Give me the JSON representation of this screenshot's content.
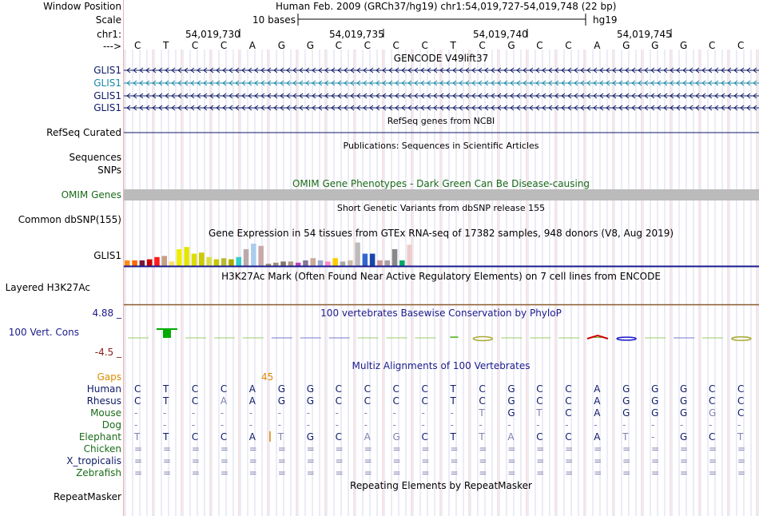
{
  "header": {
    "window_position_label": "Window Position",
    "window_position_text": "Human Feb. 2009 (GRCh37/hg19)   chr1:54,019,727-54,019,748 (22 bp)",
    "scale_label": "Scale",
    "scale_text": "10 bases",
    "assembly": "hg19",
    "chrom_label": "chr1:",
    "strand_label": "--->",
    "positions": [
      "54,019,730",
      "54,019,735",
      "54,019,740",
      "54,019,745"
    ],
    "sequence": [
      "C",
      "T",
      "C",
      "C",
      "A",
      "G",
      "G",
      "C",
      "C",
      "C",
      "C",
      "T",
      "C",
      "G",
      "C",
      "C",
      "A",
      "G",
      "G",
      "G",
      "C",
      "C"
    ]
  },
  "tracks": {
    "gencode_title": "GENCODE V49lift37",
    "gencode_rows": [
      {
        "label": "GLIS1",
        "color": "#0d1a66"
      },
      {
        "label": "GLIS1",
        "color": "#1a8aa6"
      },
      {
        "label": "GLIS1",
        "color": "#0d1a66"
      },
      {
        "label": "GLIS1",
        "color": "#0d1a66"
      }
    ],
    "refseq_title": "RefSeq genes from NCBI",
    "refseq_label": "RefSeq Curated",
    "refseq_color": "#0d1a66",
    "publications_title": "Publications: Sequences in Scientific Articles",
    "sequences_label": "Sequences",
    "snps_label": "SNPs",
    "omim_title": "OMIM Gene Phenotypes - Dark Green Can Be Disease-causing",
    "omim_label": "OMIM Genes",
    "omim_color": "#1a6b1a",
    "dbsnp_title": "Short Genetic Variants from dbSNP release 155",
    "dbsnp_label": "Common dbSNP(155)",
    "gtex_title": "Gene Expression in 54 tissues from GTEx RNA-seq of 17382 samples, 948 donors (V8, Aug 2019)",
    "gtex_label": "GLIS1",
    "h3k27ac_title": "H3K27Ac Mark (Often Found Near Active Regulatory Elements) on 7 cell lines from ENCODE",
    "h3k27ac_label": "Layered H3K27Ac",
    "phylop_title": "100 vertebrates Basewise Conservation by PhyloP",
    "phylop_label": "100 Vert. Cons",
    "phylop_max": "4.88 _",
    "phylop_min": "-4.5 _",
    "phylop_color": "#1a1a8c",
    "multiz_title": "Multiz Alignments of 100 Vertebrates",
    "gaps_label": "Gaps",
    "gaps_value": "45",
    "gaps_color": "#d98c00",
    "repeat_title": "Repeating Elements by RepeatMasker",
    "repeat_label": "RepeatMasker"
  },
  "gtex_data": {
    "colors": [
      "#ff8c1a",
      "#ff6600",
      "#7a1a3a",
      "#cc0000",
      "#ff1a1a",
      "#c8a080",
      "#ffe066",
      "#eeee00",
      "#e5e500",
      "#dddd00",
      "#cccc00",
      "#dddd44",
      "#c8c800",
      "#bbbb33",
      "#aaaa00",
      "#33cccc",
      "#bbaaaa",
      "#aaccee",
      "#c8a8a8",
      "#998866",
      "#a09080",
      "#887766",
      "#aa9988",
      "#bb44bb",
      "#887799",
      "#ccaa99",
      "#99aacc",
      "#ff88cc",
      "#ffcc00",
      "#aaaaaa",
      "#ccbbaa",
      "#bbbbbb",
      "#3366cc",
      "#1a44aa",
      "#cc9999",
      "#aaa0a0",
      "#888888",
      "#00aa66",
      "#eecccc"
    ],
    "values": [
      0.25,
      0.25,
      0.25,
      0.3,
      0.4,
      0.45,
      0.2,
      0.75,
      0.85,
      0.55,
      0.6,
      0.4,
      0.3,
      0.35,
      0.3,
      0.4,
      0.75,
      1.0,
      0.9,
      0.1,
      0.15,
      0.2,
      0.2,
      0.15,
      0.25,
      0.35,
      0.25,
      0.2,
      0.35,
      0.2,
      0.25,
      1.05,
      0.55,
      0.55,
      0.25,
      0.25,
      0.75,
      0.25,
      0.95
    ]
  },
  "phylop_data": {
    "values": [
      0.02,
      1.0,
      0.02,
      0.02,
      0.0,
      -0.02,
      -0.02,
      -0.02,
      0.0,
      0.0,
      0.02,
      0.15,
      -0.25,
      0.0,
      0.0,
      0.02,
      0.1,
      -0.15,
      0.0,
      -0.02,
      0.0,
      -0.2
    ]
  },
  "alignment": {
    "species": [
      {
        "name": "Human",
        "color": "#0d1a66",
        "bases": [
          "C",
          "T",
          "C",
          "C",
          "A",
          "G",
          "G",
          "C",
          "C",
          "C",
          "C",
          "T",
          "C",
          "G",
          "C",
          "C",
          "A",
          "G",
          "G",
          "G",
          "C",
          "C"
        ]
      },
      {
        "name": "Rhesus",
        "color": "#0d1a66",
        "bases": [
          "C",
          "T",
          "C",
          "A",
          "A",
          "G",
          "G",
          "C",
          "C",
          "C",
          "C",
          "T",
          "C",
          "G",
          "C",
          "C",
          "A",
          "G",
          "G",
          "G",
          "C",
          "C"
        ]
      },
      {
        "name": "Mouse",
        "color": "#1a6b1a",
        "bases": [
          "-",
          "-",
          "-",
          "-",
          "-",
          "-",
          "-",
          "-",
          "-",
          "-",
          "-",
          "-",
          "T",
          "G",
          "T",
          "C",
          "A",
          "G",
          "G",
          "G",
          "G",
          "C"
        ]
      },
      {
        "name": "Dog",
        "color": "#1a6b1a",
        "bases": [
          "-",
          "-",
          "-",
          "-",
          "-",
          "-",
          "-",
          "-",
          "-",
          "-",
          "-",
          "-",
          "-",
          "-",
          "-",
          "-",
          "-",
          "-",
          "-",
          "-",
          "-",
          "-"
        ]
      },
      {
        "name": "Elephant",
        "color": "#1a6b1a",
        "bases": [
          "T",
          "T",
          "C",
          "C",
          "A",
          "T",
          "G",
          "C",
          "A",
          "G",
          "C",
          "T",
          "T",
          "A",
          "C",
          "C",
          "A",
          "T",
          "-",
          "G",
          "C",
          "T"
        ]
      },
      {
        "name": "Chicken",
        "color": "#1a6b1a",
        "bases": [
          "=",
          "=",
          "=",
          "=",
          "=",
          "=",
          "=",
          "=",
          "=",
          "=",
          "=",
          "=",
          "=",
          "=",
          "=",
          "=",
          "=",
          "=",
          "=",
          "=",
          "=",
          "="
        ]
      },
      {
        "name": "X_tropicalis",
        "color": "#0d1a66",
        "bases": [
          "=",
          "=",
          "=",
          "=",
          "=",
          "=",
          "=",
          "=",
          "=",
          "=",
          "=",
          "=",
          "=",
          "=",
          "=",
          "=",
          "=",
          "=",
          "=",
          "=",
          "=",
          "="
        ]
      },
      {
        "name": "Zebrafish",
        "color": "#1a6b1a",
        "bases": [
          "=",
          "=",
          "=",
          "=",
          "=",
          "=",
          "=",
          "=",
          "=",
          "=",
          "=",
          "=",
          "=",
          "=",
          "=",
          "=",
          "=",
          "=",
          "=",
          "=",
          "=",
          "="
        ]
      }
    ],
    "light_mask": [
      [
        0,
        0,
        0,
        0,
        0,
        0,
        0,
        0,
        0,
        0,
        0,
        0,
        0,
        0,
        0,
        0,
        0,
        0,
        0,
        0,
        0,
        0
      ],
      [
        0,
        0,
        0,
        1,
        0,
        0,
        0,
        0,
        0,
        0,
        0,
        0,
        0,
        0,
        0,
        0,
        0,
        0,
        0,
        0,
        0,
        0
      ],
      [
        1,
        1,
        1,
        1,
        1,
        1,
        1,
        1,
        1,
        1,
        1,
        1,
        1,
        0,
        1,
        0,
        0,
        0,
        0,
        0,
        1,
        0
      ],
      [
        1,
        1,
        1,
        1,
        1,
        1,
        1,
        1,
        1,
        1,
        1,
        1,
        1,
        1,
        1,
        1,
        1,
        1,
        1,
        1,
        1,
        1
      ],
      [
        1,
        0,
        0,
        0,
        0,
        1,
        0,
        0,
        1,
        1,
        0,
        0,
        1,
        1,
        0,
        0,
        0,
        1,
        1,
        0,
        0,
        1
      ],
      [
        1,
        1,
        1,
        1,
        1,
        1,
        1,
        1,
        1,
        1,
        1,
        1,
        1,
        1,
        1,
        1,
        1,
        1,
        1,
        1,
        1,
        1
      ],
      [
        1,
        1,
        1,
        1,
        1,
        1,
        1,
        1,
        1,
        1,
        1,
        1,
        1,
        1,
        1,
        1,
        1,
        1,
        1,
        1,
        1,
        1
      ],
      [
        1,
        1,
        1,
        1,
        1,
        1,
        1,
        1,
        1,
        1,
        1,
        1,
        1,
        1,
        1,
        1,
        1,
        1,
        1,
        1,
        1,
        1
      ]
    ]
  }
}
